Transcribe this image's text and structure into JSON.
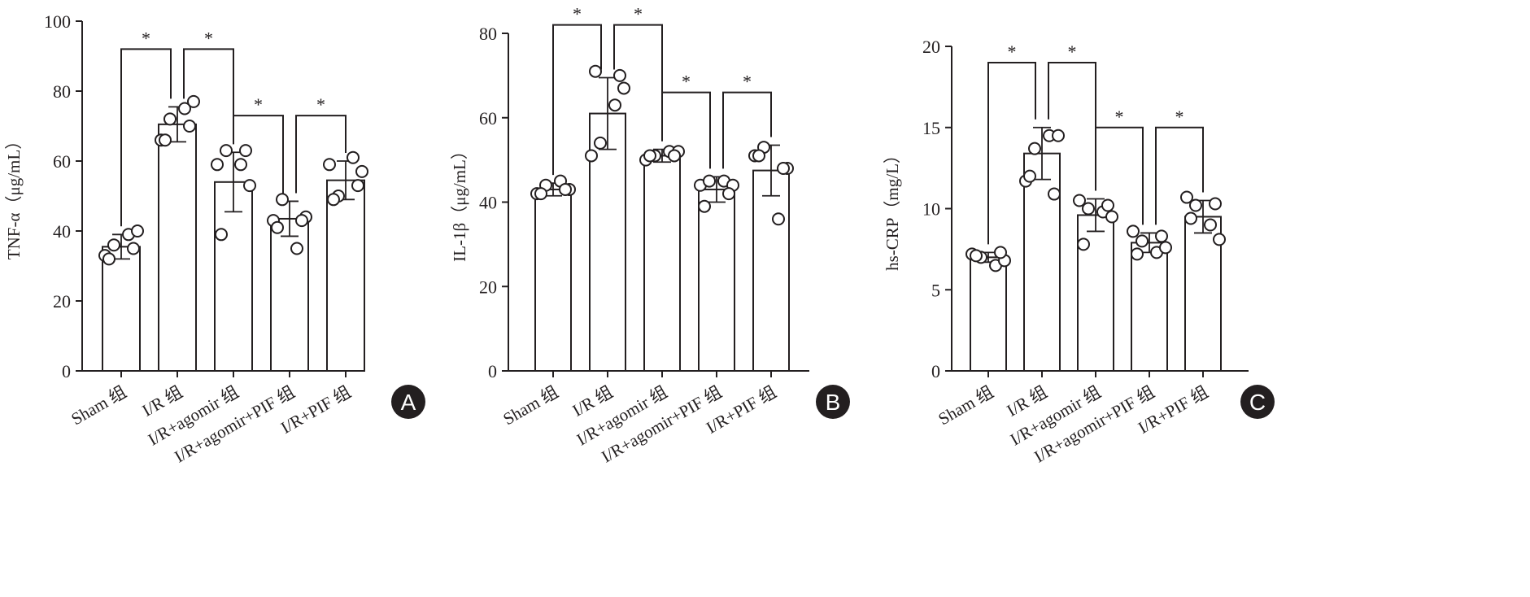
{
  "group_suffix": "组",
  "panel_letters": [
    "A",
    "B",
    "C"
  ],
  "chart_data": [
    {
      "type": "bar",
      "panel": "A",
      "ylabel": "TNF-α（μg/mL）",
      "ylim": [
        0,
        100
      ],
      "yticks": [
        0,
        20,
        40,
        60,
        80,
        100
      ],
      "categories": [
        "Sham 组",
        "I/R 组",
        "I/R+agomir 组",
        "I/R+agomir+PIF 组",
        "I/R+PIF 组"
      ],
      "values": [
        35.5,
        70.5,
        54,
        43.5,
        54.5
      ],
      "error": [
        3.5,
        5,
        8.5,
        5,
        5.5
      ],
      "points": [
        [
          33,
          36,
          39,
          40,
          32,
          35
        ],
        [
          66,
          72,
          75,
          77,
          66,
          70
        ],
        [
          59,
          63,
          59,
          53,
          39,
          63
        ],
        [
          43,
          49,
          35,
          44,
          41,
          43
        ],
        [
          59,
          50,
          61,
          57,
          49,
          53
        ]
      ],
      "significance": [
        {
          "from": 0,
          "to": 1,
          "label": "*",
          "y": 92
        },
        {
          "from": 1,
          "to": 2,
          "label": "*",
          "y": 92
        },
        {
          "from": 2,
          "to": 3,
          "label": "*",
          "y": 73
        },
        {
          "from": 3,
          "to": 4,
          "label": "*",
          "y": 73
        }
      ],
      "grid": false
    },
    {
      "type": "bar",
      "panel": "B",
      "ylabel": "IL-1β（μg/mL）",
      "ylim": [
        0,
        80
      ],
      "yticks": [
        0,
        20,
        40,
        60,
        80
      ],
      "categories": [
        "Sham 组",
        "I/R 组",
        "I/R+agomir 组",
        "I/R+agomir+PIF 组",
        "I/R+PIF 组"
      ],
      "values": [
        43,
        61,
        51,
        43,
        47.5
      ],
      "error": [
        1.5,
        8.5,
        1.5,
        3,
        6
      ],
      "points": [
        [
          42,
          44,
          45,
          43,
          42,
          43
        ],
        [
          51,
          54,
          63,
          67,
          71,
          70
        ],
        [
          50,
          51,
          52,
          52,
          51,
          51
        ],
        [
          44,
          45,
          45,
          44,
          39,
          42
        ],
        [
          51,
          53,
          36,
          48,
          51,
          48
        ]
      ],
      "significance": [
        {
          "from": 0,
          "to": 1,
          "label": "*",
          "y": 82
        },
        {
          "from": 1,
          "to": 2,
          "label": "*",
          "y": 82
        },
        {
          "from": 2,
          "to": 3,
          "label": "*",
          "y": 66
        },
        {
          "from": 3,
          "to": 4,
          "label": "*",
          "y": 66
        }
      ],
      "grid": false
    },
    {
      "type": "bar",
      "panel": "C",
      "ylabel": "hs-CRP（mg/L）",
      "ylim": [
        0,
        20
      ],
      "yticks": [
        0,
        5,
        10,
        15,
        20
      ],
      "categories": [
        "Sham 组",
        "I/R 组",
        "I/R+agomir 组",
        "I/R+agomir+PIF 组",
        "I/R+PIF 组"
      ],
      "values": [
        7,
        13.4,
        9.6,
        7.9,
        9.5
      ],
      "error": [
        0.3,
        1.6,
        1.0,
        0.6,
        1.0
      ],
      "points": [
        [
          7.2,
          7.0,
          6.5,
          6.8,
          7.1,
          7.3
        ],
        [
          11.7,
          13.7,
          14.5,
          14.5,
          12.0,
          10.9
        ],
        [
          10.5,
          10.0,
          9.8,
          9.5,
          7.8,
          10.2
        ],
        [
          8.6,
          8.0,
          7.3,
          7.6,
          7.2,
          8.3
        ],
        [
          10.7,
          10.2,
          9.0,
          8.1,
          9.4,
          10.3
        ]
      ],
      "significance": [
        {
          "from": 0,
          "to": 1,
          "label": "*",
          "y": 19
        },
        {
          "from": 1,
          "to": 2,
          "label": "*",
          "y": 19
        },
        {
          "from": 2,
          "to": 3,
          "label": "*",
          "y": 15
        },
        {
          "from": 3,
          "to": 4,
          "label": "*",
          "y": 15
        }
      ],
      "grid": false
    }
  ]
}
